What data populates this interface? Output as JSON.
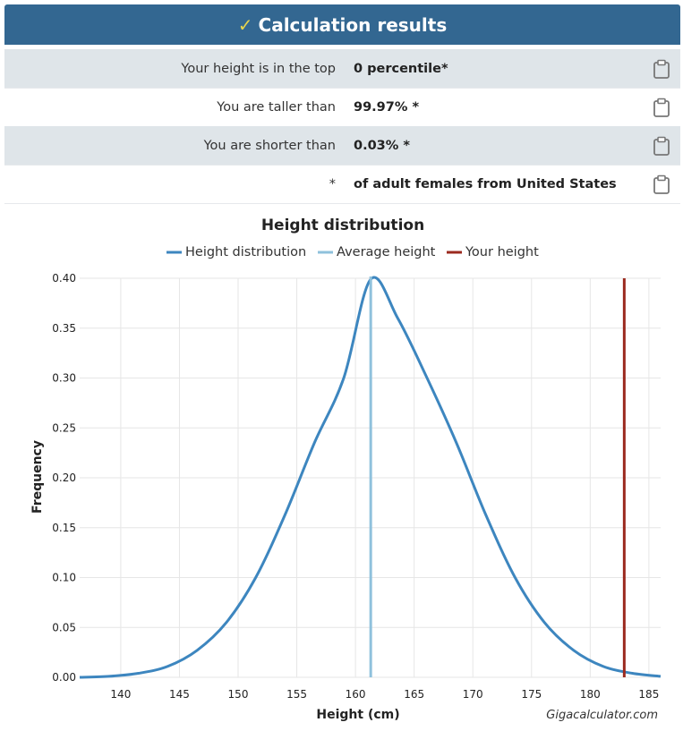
{
  "header": {
    "title": "Calculation results",
    "icon": "checkmark-icon",
    "bg_color": "#336791",
    "icon_color": "#e8d44d"
  },
  "results": [
    {
      "label": "Your height is in the top",
      "value": "0 percentile*"
    },
    {
      "label": "You are taller than",
      "value": "99.97% *"
    },
    {
      "label": "You are shorter than",
      "value": "0.03% *"
    },
    {
      "label": "*",
      "value": "of adult females from United States"
    }
  ],
  "copy_icon": "clipboard-icon",
  "watermark": "Gigacalculator.com",
  "chart_data": {
    "type": "line",
    "title": "Height distribution",
    "xlabel": "Height (cm)",
    "ylabel": "Frequency",
    "xlim": [
      136.5,
      186
    ],
    "ylim": [
      0,
      0.4
    ],
    "x_ticks": [
      140,
      145,
      150,
      155,
      160,
      165,
      170,
      175,
      180,
      185
    ],
    "y_ticks": [
      "0.00",
      "0.05",
      "0.10",
      "0.15",
      "0.20",
      "0.25",
      "0.30",
      "0.35",
      "0.40"
    ],
    "grid": true,
    "legend_position": "top",
    "series": [
      {
        "name": "Height distribution",
        "color": "#3d86bf",
        "x": [
          136.5,
          139,
          141.5,
          144,
          146.5,
          149,
          151.5,
          154,
          156.5,
          159,
          161.3,
          163.6,
          166.1,
          168.6,
          171.1,
          173.6,
          176.1,
          178.6,
          181.1,
          183.6,
          186
        ],
        "values": [
          0.0,
          0.001,
          0.004,
          0.011,
          0.027,
          0.055,
          0.1,
          0.163,
          0.235,
          0.3,
          0.399,
          0.36,
          0.3,
          0.235,
          0.163,
          0.1,
          0.055,
          0.027,
          0.011,
          0.004,
          0.001
        ]
      },
      {
        "name": "Average height",
        "color": "#8fc1dc",
        "x_value": 161.3
      },
      {
        "name": "Your height",
        "color": "#9b2a1f",
        "x_value": 182.9
      }
    ]
  }
}
